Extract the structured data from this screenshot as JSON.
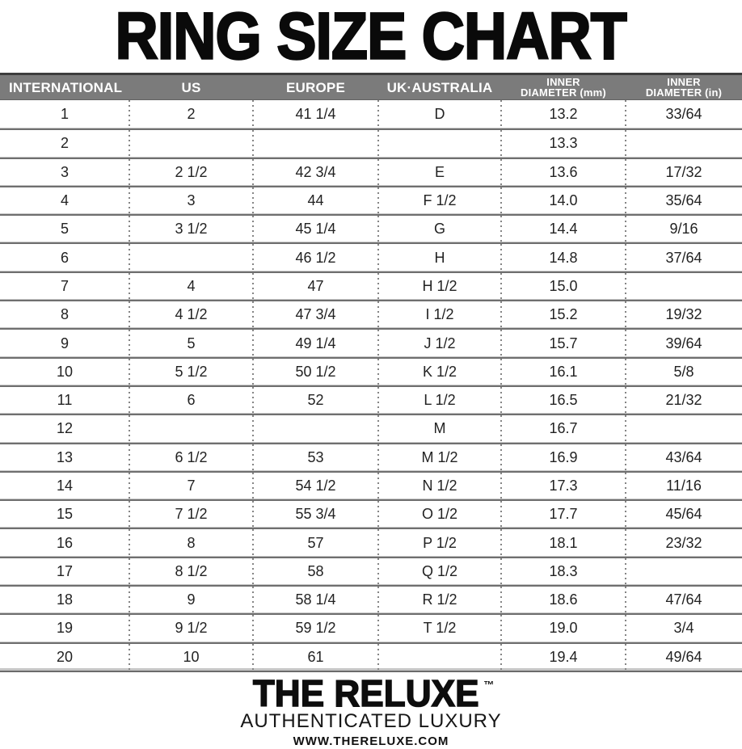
{
  "title": "RING SIZE CHART",
  "chart_data": {
    "type": "table",
    "title": "RING SIZE CHART",
    "columns": [
      "INTERNATIONAL",
      "US",
      "EUROPE",
      "UK·AUSTRALIA",
      "INNER DIAMETER (mm)",
      "INNER DIAMETER (in)"
    ],
    "header_lines": [
      [
        "INTERNATIONAL"
      ],
      [
        "US"
      ],
      [
        "EUROPE"
      ],
      [
        "UK·AUSTRALIA"
      ],
      [
        "INNER",
        "DIAMETER (mm)"
      ],
      [
        "INNER",
        "DIAMETER (in)"
      ]
    ],
    "rows": [
      [
        "1",
        "2",
        "41 1/4",
        "D",
        "13.2",
        "33/64"
      ],
      [
        "2",
        "",
        "",
        "",
        "13.3",
        ""
      ],
      [
        "3",
        "2 1/2",
        "42 3/4",
        "E",
        "13.6",
        "17/32"
      ],
      [
        "4",
        "3",
        "44",
        "F 1/2",
        "14.0",
        "35/64"
      ],
      [
        "5",
        "3 1/2",
        "45 1/4",
        "G",
        "14.4",
        "9/16"
      ],
      [
        "6",
        "",
        "46 1/2",
        "H",
        "14.8",
        "37/64"
      ],
      [
        "7",
        "4",
        "47",
        "H 1/2",
        "15.0",
        ""
      ],
      [
        "8",
        "4 1/2",
        "47 3/4",
        "I 1/2",
        "15.2",
        "19/32"
      ],
      [
        "9",
        "5",
        "49 1/4",
        "J 1/2",
        "15.7",
        "39/64"
      ],
      [
        "10",
        "5 1/2",
        "50 1/2",
        "K 1/2",
        "16.1",
        "5/8"
      ],
      [
        "11",
        "6",
        "52",
        "L 1/2",
        "16.5",
        "21/32"
      ],
      [
        "12",
        "",
        "",
        "M",
        "16.7",
        ""
      ],
      [
        "13",
        "6 1/2",
        "53",
        "M 1/2",
        "16.9",
        "43/64"
      ],
      [
        "14",
        "7",
        "54 1/2",
        "N 1/2",
        "17.3",
        "11/16"
      ],
      [
        "15",
        "7 1/2",
        "55 3/4",
        "O 1/2",
        "17.7",
        "45/64"
      ],
      [
        "16",
        "8",
        "57",
        "P 1/2",
        "18.1",
        "23/32"
      ],
      [
        "17",
        "8 1/2",
        "58",
        "Q 1/2",
        "18.3",
        ""
      ],
      [
        "18",
        "9",
        "58 1/4",
        "R 1/2",
        "18.6",
        "47/64"
      ],
      [
        "19",
        "9 1/2",
        "59 1/2",
        "T 1/2",
        "19.0",
        "3/4"
      ],
      [
        "20",
        "10",
        "61",
        "",
        "19.4",
        "49/64"
      ]
    ]
  },
  "footer": {
    "brand": "THE RELUXE",
    "trademark": "™",
    "tagline": "AUTHENTICATED LUXURY",
    "website": "WWW.THERELUXE.COM"
  },
  "colors": {
    "header_bg": "#7b7b7b",
    "header_top_border": "#3d3d3d",
    "header_text": "#ffffff",
    "row_separator": "#6f6f6f",
    "column_dots": "#858585",
    "body_text": "#222222",
    "title_text": "#0a0a0a"
  }
}
